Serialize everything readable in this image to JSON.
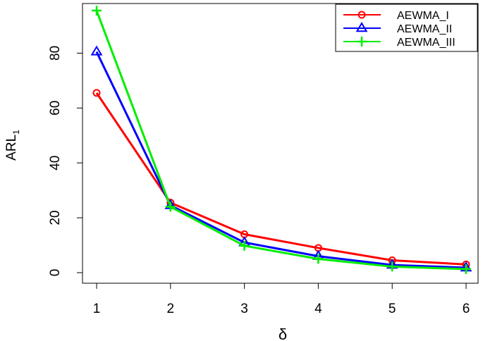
{
  "chart_data": {
    "type": "line",
    "title": "",
    "xlabel": "δ",
    "ylabel": "ARL",
    "ylabel_subscript": "1",
    "x": [
      1,
      2,
      3,
      4,
      5,
      6
    ],
    "xlim": [
      1,
      6
    ],
    "ylim": [
      0,
      95
    ],
    "x_ticks": [
      1,
      2,
      3,
      4,
      5,
      6
    ],
    "y_ticks": [
      0,
      20,
      40,
      60,
      80
    ],
    "grid": false,
    "legend_position": "top-right",
    "series": [
      {
        "name": "AEWMA_I",
        "values": [
          65.5,
          25.5,
          14.0,
          9.0,
          4.5,
          3.0
        ],
        "color": "#ff0000",
        "marker": "circle"
      },
      {
        "name": "AEWMA_II",
        "values": [
          80.5,
          24.5,
          11.0,
          6.0,
          2.8,
          1.8
        ],
        "color": "#0000ff",
        "marker": "triangle"
      },
      {
        "name": "AEWMA_III",
        "values": [
          95.5,
          24.0,
          9.8,
          5.0,
          2.2,
          1.3
        ],
        "color": "#00ee00",
        "marker": "plus"
      }
    ]
  }
}
